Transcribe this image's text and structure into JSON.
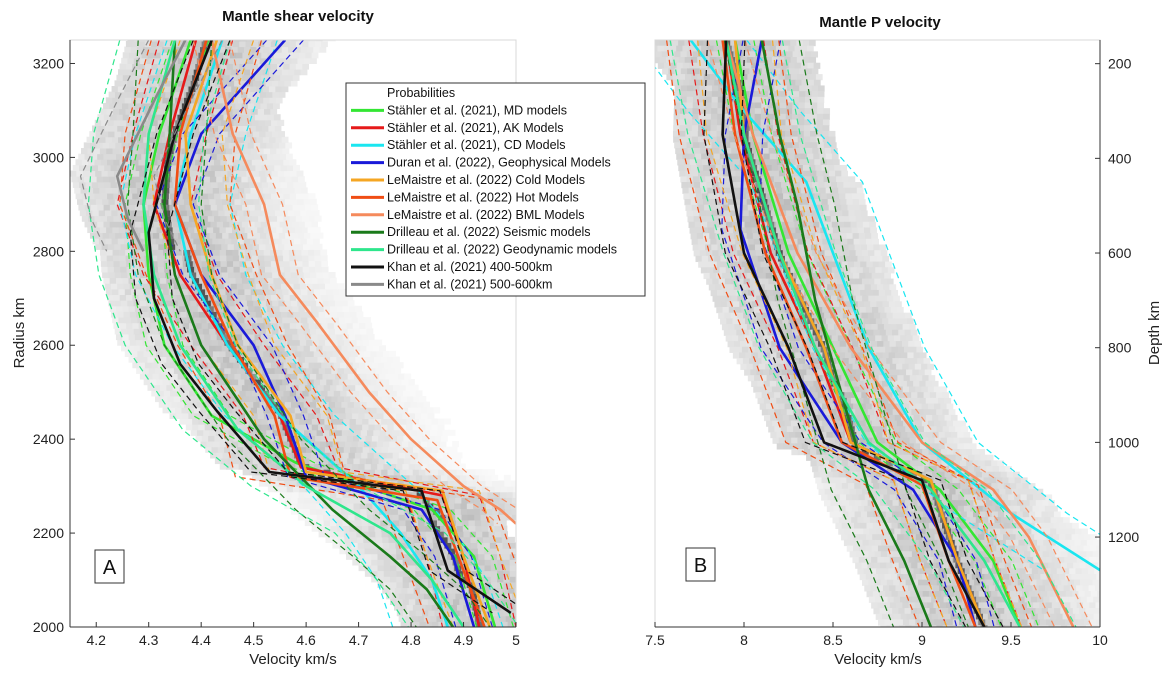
{
  "chart_data": [
    {
      "type": "line",
      "panel": "A",
      "title": "Mantle shear velocity",
      "xlabel": "Velocity km/s",
      "ylabel": "Radius km",
      "xlim": [
        4.15,
        5.0
      ],
      "ylim": [
        2000,
        3250
      ],
      "x_ticks": [
        "4.2",
        "4.3",
        "4.4",
        "4.5",
        "4.6",
        "4.7",
        "4.8",
        "4.9",
        "5"
      ],
      "y_ticks": [
        "2000",
        "2200",
        "2400",
        "2600",
        "2800",
        "3000",
        "3200"
      ],
      "legend_position": "top-right",
      "legend": [
        {
          "name": "Probabilities",
          "color": "#ffffff"
        },
        {
          "name": "Stähler et al. (2021), MD models",
          "color": "#33e633"
        },
        {
          "name": "Stähler et al. (2021), AK Models",
          "color": "#e61a1a"
        },
        {
          "name": "Stähler et al. (2021), CD Models",
          "color": "#1ae6f0"
        },
        {
          "name": "Duran et al. (2022), Geophysical Models",
          "color": "#1a1ad9"
        },
        {
          "name": "LeMaistre et al. (2022) Cold Models",
          "color": "#f5a623"
        },
        {
          "name": "LeMaistre et al. (2022) Hot Models",
          "color": "#f04d14"
        },
        {
          "name": "LeMaistre et al. (2022) BML Models",
          "color": "#f58a5c"
        },
        {
          "name": "Drilleau et al. (2022) Seismic models",
          "color": "#1a7a1a"
        },
        {
          "name": "Drilleau et al. (2022) Geodynamic models",
          "color": "#2ee68c"
        },
        {
          "name": "Khan et al. (2021) 400-500km",
          "color": "#111111"
        },
        {
          "name": "Khan et al. (2021) 500-600km",
          "color": "#8a8a8a"
        }
      ],
      "series": [
        {
          "name": "Stähler et al. (2021), MD models",
          "color": "#33e633",
          "x": [
            4.38,
            4.32,
            4.29,
            4.3,
            4.33,
            4.42,
            4.58,
            4.84,
            4.92,
            4.96
          ],
          "y": [
            3250,
            3050,
            2900,
            2750,
            2600,
            2450,
            2350,
            2250,
            2150,
            2000
          ]
        },
        {
          "name": "Stähler et al. (2021), AK Models",
          "color": "#e61a1a",
          "x": [
            4.39,
            4.34,
            4.31,
            4.36,
            4.45,
            4.55,
            4.59,
            4.86,
            4.9,
            4.93
          ],
          "y": [
            3250,
            3050,
            2900,
            2750,
            2600,
            2450,
            2340,
            2280,
            2150,
            2000
          ]
        },
        {
          "name": "Stähler et al. (2021), CD Models",
          "color": "#1ae6f0",
          "x": [
            4.44,
            4.38,
            4.35,
            4.38,
            4.45,
            4.55,
            4.7,
            4.78,
            4.84,
            4.87
          ],
          "y": [
            3250,
            3050,
            2900,
            2750,
            2600,
            2450,
            2300,
            2200,
            2100,
            2000
          ]
        },
        {
          "name": "Duran et al. (2022), Geophysical Models",
          "color": "#1a1ad9",
          "x": [
            4.56,
            4.4,
            4.35,
            4.4,
            4.5,
            4.56,
            4.6,
            4.82,
            4.88,
            4.92
          ],
          "y": [
            3250,
            3050,
            2900,
            2750,
            2600,
            2450,
            2320,
            2250,
            2150,
            2000
          ]
        },
        {
          "name": "LeMaistre et al. (2022) Cold Models",
          "color": "#f5a623",
          "x": [
            4.43,
            4.37,
            4.38,
            4.42,
            4.47,
            4.57,
            4.6,
            4.86,
            4.9,
            4.95
          ],
          "y": [
            3250,
            3050,
            2900,
            2750,
            2600,
            2450,
            2330,
            2290,
            2150,
            2000
          ]
        },
        {
          "name": "LeMaistre et al. (2022) Hot Models",
          "color": "#f04d14",
          "x": [
            4.41,
            4.36,
            4.35,
            4.4,
            4.46,
            4.54,
            4.57,
            4.85,
            4.89,
            4.94
          ],
          "y": [
            3250,
            3050,
            2900,
            2750,
            2600,
            2450,
            2320,
            2270,
            2150,
            2000
          ]
        },
        {
          "name": "LeMaistre et al. (2022) BML Models",
          "color": "#f58a5c",
          "x": [
            4.42,
            4.46,
            4.52,
            4.55,
            4.62,
            4.72,
            4.8,
            4.9,
            4.97,
            5.0
          ],
          "y": [
            3250,
            3050,
            2900,
            2750,
            2650,
            2500,
            2400,
            2300,
            2250,
            2220
          ]
        },
        {
          "name": "Drilleau et al. (2022) Seismic models",
          "color": "#1a7a1a",
          "x": [
            4.35,
            4.34,
            4.33,
            4.35,
            4.4,
            4.52,
            4.65,
            4.76,
            4.83,
            4.88
          ],
          "y": [
            3250,
            3050,
            2900,
            2750,
            2600,
            2400,
            2250,
            2150,
            2080,
            2000
          ]
        },
        {
          "name": "Drilleau et al. (2022) Geodynamic models",
          "color": "#2ee68c",
          "x": [
            4.35,
            4.3,
            4.29,
            4.31,
            4.36,
            4.47,
            4.6,
            4.76,
            4.84,
            4.9
          ],
          "y": [
            3250,
            3050,
            2900,
            2750,
            2600,
            2420,
            2300,
            2200,
            2100,
            2000
          ]
        },
        {
          "name": "Khan et al. (2021) 400-500km",
          "color": "#111111",
          "x": [
            4.42,
            4.35,
            4.3,
            4.31,
            4.36,
            4.43,
            4.53,
            4.82,
            4.87,
            4.99
          ],
          "y": [
            3250,
            3050,
            2840,
            2700,
            2560,
            2460,
            2330,
            2290,
            2120,
            2030
          ]
        },
        {
          "name": "Khan et al. (2021) 500-600km",
          "color": "#8a8a8a",
          "x": [
            4.37,
            4.31,
            4.24,
            4.26,
            4.29
          ],
          "y": [
            3250,
            3120,
            2960,
            2870,
            2800
          ]
        }
      ]
    },
    {
      "type": "line",
      "panel": "B",
      "title": "Mantle P velocity",
      "xlabel": "Velocity km/s",
      "ylabel": "Depth km",
      "xlim": [
        7.5,
        10.0
      ],
      "ylim_depth": [
        150,
        1390
      ],
      "x_ticks": [
        "7.5",
        "8",
        "8.5",
        "9",
        "9.5",
        "10"
      ],
      "y_ticks": [
        "200",
        "400",
        "600",
        "800",
        "1000",
        "1200"
      ],
      "series": [
        {
          "name": "Stähler et al. (2021), MD models",
          "color": "#33e633",
          "x": [
            7.95,
            8.05,
            8.25,
            8.5,
            8.75,
            9.1,
            9.4,
            9.55
          ],
          "y": [
            150,
            350,
            600,
            800,
            1000,
            1100,
            1250,
            1390
          ]
        },
        {
          "name": "Stähler et al. (2021), AK Models",
          "color": "#e61a1a",
          "x": [
            7.9,
            7.98,
            8.15,
            8.4,
            8.6,
            9.05,
            9.2,
            9.35
          ],
          "y": [
            150,
            350,
            600,
            800,
            1000,
            1080,
            1250,
            1390
          ]
        },
        {
          "name": "Stähler et al. (2021), CD Models",
          "color": "#1ae6f0",
          "x": [
            7.7,
            8.0,
            8.35,
            8.5,
            8.7,
            9.0,
            9.5,
            10.0
          ],
          "y": [
            150,
            300,
            450,
            600,
            800,
            1000,
            1150,
            1270
          ]
        },
        {
          "name": "Duran et al. (2022), Geophysical Models",
          "color": "#1a1ad9",
          "x": [
            8.1,
            8.0,
            7.98,
            8.2,
            8.55,
            8.95,
            9.2,
            9.3
          ],
          "y": [
            150,
            350,
            550,
            800,
            1000,
            1100,
            1250,
            1390
          ]
        },
        {
          "name": "LeMaistre et al. (2022) Cold Models",
          "color": "#f5a623",
          "x": [
            7.95,
            8.0,
            8.2,
            8.45,
            8.6,
            9.05,
            9.2,
            9.35
          ],
          "y": [
            150,
            350,
            600,
            800,
            1000,
            1080,
            1250,
            1390
          ]
        },
        {
          "name": "LeMaistre et al. (2022) Hot Models",
          "color": "#f04d14",
          "x": [
            7.88,
            7.95,
            8.12,
            8.35,
            8.55,
            9.0,
            9.15,
            9.3
          ],
          "y": [
            150,
            350,
            600,
            800,
            1000,
            1090,
            1250,
            1390
          ]
        },
        {
          "name": "LeMaistre et al. (2022) BML Models",
          "color": "#f58a5c",
          "x": [
            7.9,
            8.05,
            8.3,
            8.6,
            9.0,
            9.4,
            9.6,
            9.85
          ],
          "y": [
            150,
            350,
            600,
            800,
            1000,
            1100,
            1200,
            1390
          ]
        },
        {
          "name": "Drilleau et al. (2022) Seismic models",
          "color": "#1a7a1a",
          "x": [
            8.1,
            8.2,
            8.3,
            8.4,
            8.55,
            8.7,
            8.9,
            9.05
          ],
          "y": [
            150,
            350,
            500,
            700,
            900,
            1100,
            1250,
            1390
          ]
        },
        {
          "name": "Drilleau et al. (2022) Geodynamic models",
          "color": "#2ee68c",
          "x": [
            7.9,
            8.0,
            8.2,
            8.4,
            8.7,
            9.05,
            9.35,
            9.55
          ],
          "y": [
            150,
            350,
            600,
            800,
            1000,
            1100,
            1250,
            1390
          ]
        },
        {
          "name": "Khan et al. (2021) 400-500km",
          "color": "#111111",
          "x": [
            7.9,
            7.88,
            8.0,
            8.25,
            8.45,
            9.0,
            9.15,
            9.35
          ],
          "y": [
            150,
            350,
            600,
            800,
            1000,
            1080,
            1250,
            1390
          ]
        }
      ]
    }
  ],
  "panels": {
    "A": {
      "label": "A"
    },
    "B": {
      "label": "B"
    }
  }
}
